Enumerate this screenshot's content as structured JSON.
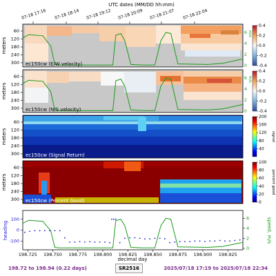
{
  "chart_data": {
    "type": "heatmap",
    "top_axis": {
      "label": "UTC dates (MM/DD hh:mm)",
      "ticks": [
        "07-18 17:16",
        "07-18 18:14",
        "07-18 19:12",
        "07-18 20:09",
        "07-18 21:07",
        "07-18 22:04"
      ]
    },
    "xlim": [
      198.72,
      198.94
    ],
    "x_ticks": [
      "198.725",
      "198.750",
      "198.775",
      "198.800",
      "198.825",
      "198.850",
      "198.875",
      "198.900",
      "198.925"
    ],
    "xlabel": "decimal day",
    "panels": [
      {
        "label": "ec150cw (E/W velocity)",
        "ylabel": "meters",
        "y_ticks": [
          "60",
          "120",
          "180",
          "240",
          "300"
        ],
        "colorbar": {
          "ticks": [
            "0.4",
            "0.2",
            "0.0",
            "-0.2",
            "-0.4"
          ],
          "min": -0.4,
          "max": 0.4,
          "colormap": "red-blue diverging"
        },
        "speed_axis": {
          "label": "m/s",
          "ticks": [
            "0",
            "2",
            "4",
            "6"
          ],
          "max": 7
        }
      },
      {
        "label": "ec150cw (N/S velocity)",
        "ylabel": "meters",
        "y_ticks": [
          "60",
          "120",
          "180",
          "240",
          "300"
        ],
        "colorbar": {
          "ticks": [
            "0.4",
            "0.2",
            "0.0",
            "-0.2",
            "-0.4"
          ],
          "min": -0.4,
          "max": 0.4,
          "colormap": "red-blue diverging"
        },
        "speed_axis": {
          "label": "m/s",
          "ticks": [
            "0",
            "2",
            "4",
            "6"
          ],
          "max": 7
        }
      },
      {
        "label": "ec150cw (Signal Return)",
        "ylabel": "meters",
        "y_ticks": [
          "60",
          "120",
          "180",
          "240",
          "300"
        ],
        "colorbar": {
          "label": "signal",
          "ticks": [
            "200",
            "160",
            "120",
            "80",
            "40"
          ],
          "min": 0,
          "max": 200,
          "colormap": "jet"
        }
      },
      {
        "label": "ec150cw (Percent Good)",
        "ylabel": "meters",
        "y_ticks": [
          "60",
          "120",
          "180",
          "240",
          "300"
        ],
        "colorbar": {
          "label": "percent good",
          "ticks": [
            "100",
            "80",
            "60",
            "40",
            "20",
            "0"
          ],
          "min": 0,
          "max": 100,
          "colormap": "jet"
        }
      }
    ],
    "bottom_panel": {
      "ylabel_left": "heading",
      "ylabel_right": "speed, m/s",
      "y_ticks_left": [
        "100",
        "0",
        "-100"
      ],
      "y_ticks_right": [
        "6",
        "4",
        "2",
        "0"
      ],
      "ylim_left": [
        -180,
        180
      ],
      "ylim_right": [
        0,
        7
      ],
      "heading": {
        "x": [
          198.722,
          198.727,
          198.732,
          198.737,
          198.742,
          198.747,
          198.752,
          198.757,
          198.762,
          198.767,
          198.772,
          198.777,
          198.782,
          198.787,
          198.792,
          198.797,
          198.802,
          198.807,
          198.809,
          198.811,
          198.813,
          198.817,
          198.822,
          198.827,
          198.832,
          198.837,
          198.842,
          198.847,
          198.852,
          198.857,
          198.862,
          198.867,
          198.872,
          198.877,
          198.882,
          198.887,
          198.892,
          198.897,
          198.902,
          198.907,
          198.912,
          198.917,
          198.922,
          198.927,
          198.932,
          198.937
        ],
        "y": [
          -20,
          -10,
          -5,
          -5,
          -5,
          -5,
          -5,
          -5,
          -70,
          -110,
          -110,
          -105,
          -110,
          -105,
          -110,
          -110,
          -110,
          -115,
          100,
          100,
          100,
          -115,
          -75,
          -70,
          -70,
          -75,
          -80,
          -80,
          -75,
          -75,
          -80,
          -115,
          -110,
          -105,
          -105,
          -105,
          -100,
          -100,
          -105,
          -100,
          -100,
          -95,
          -100,
          -100,
          -95,
          -90
        ]
      },
      "speed": {
        "x": [
          198.72,
          198.726,
          198.74,
          198.748,
          198.752,
          198.756,
          198.81,
          198.813,
          198.818,
          198.822,
          198.828,
          198.84,
          198.852,
          198.858,
          198.863,
          198.868,
          198.875,
          198.905,
          198.92,
          198.935,
          198.94
        ],
        "y": [
          5.0,
          5.6,
          5.4,
          3.5,
          0.2,
          0.1,
          0.1,
          5.5,
          5.8,
          4.5,
          0.2,
          0.1,
          0.1,
          4.5,
          6.0,
          5.8,
          0.3,
          0.2,
          0.4,
          1.0,
          1.2
        ]
      }
    }
  },
  "footer": {
    "left": "198.72 to 198.94 (0.22 days)",
    "center": "SR2516",
    "right": "2025/07/18 17:19 to 2025/07/18 22:34"
  },
  "colors": {
    "speed_line": "#1a9a1a",
    "heading_dots": "#1a1acc",
    "footer_text": "#7b2a8c",
    "missing": "#c8c8c8"
  }
}
